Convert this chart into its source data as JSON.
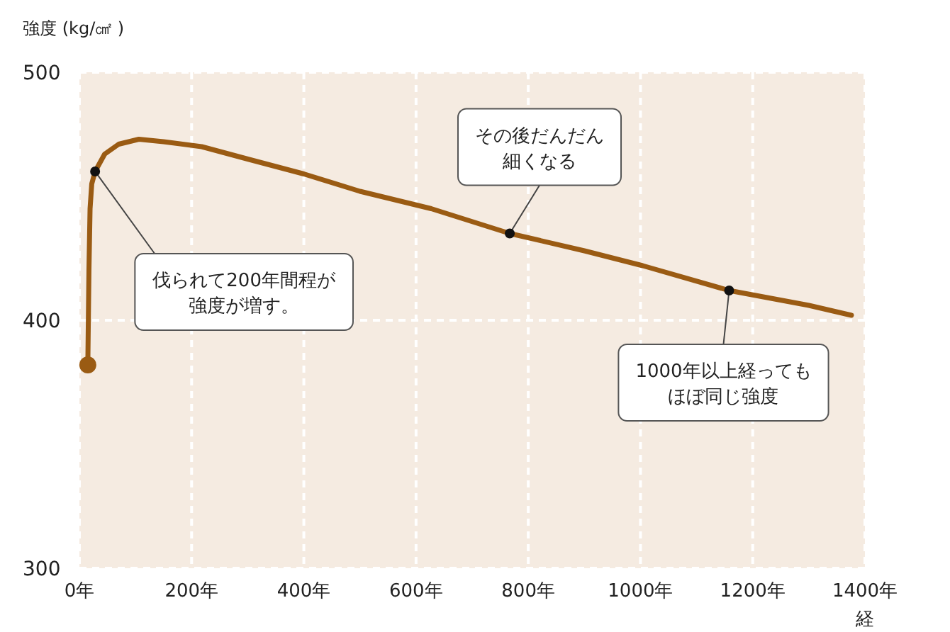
{
  "chart_data": {
    "type": "line",
    "ylabel": "強度 (kg/㎠ )",
    "xlabel": "経",
    "xlim": [
      0,
      1400
    ],
    "ylim": [
      300,
      500
    ],
    "xticks": [
      {
        "value": 0,
        "label": "0年"
      },
      {
        "value": 200,
        "label": "200年"
      },
      {
        "value": 400,
        "label": "400年"
      },
      {
        "value": 600,
        "label": "600年"
      },
      {
        "value": 800,
        "label": "800年"
      },
      {
        "value": 1000,
        "label": "1000年"
      },
      {
        "value": 1200,
        "label": "1200年"
      },
      {
        "value": 1400,
        "label": "1400年"
      }
    ],
    "yticks": [
      300,
      400,
      500
    ],
    "grid": true,
    "series": [
      {
        "color": "#9a5b13",
        "x": [
          15,
          17,
          19,
          22,
          28,
          45,
          70,
          106,
          150,
          218,
          300,
          400,
          500,
          627,
          767,
          900,
          1004,
          1158,
          1300,
          1376
        ],
        "values": [
          382,
          420,
          445,
          455,
          460,
          467,
          471,
          473,
          472,
          470,
          465,
          459,
          452,
          445,
          435,
          428,
          422,
          412,
          406,
          402
        ]
      }
    ],
    "annotations": [
      {
        "text": "伐られて200年間程が強度が増す。",
        "x": 28,
        "y": 460
      },
      {
        "text": "その後だんだん細くなる",
        "x": 767,
        "y": 435
      },
      {
        "text": "1000年以上経ってもほぼ同じ強度",
        "x": 1158,
        "y": 412
      }
    ]
  }
}
